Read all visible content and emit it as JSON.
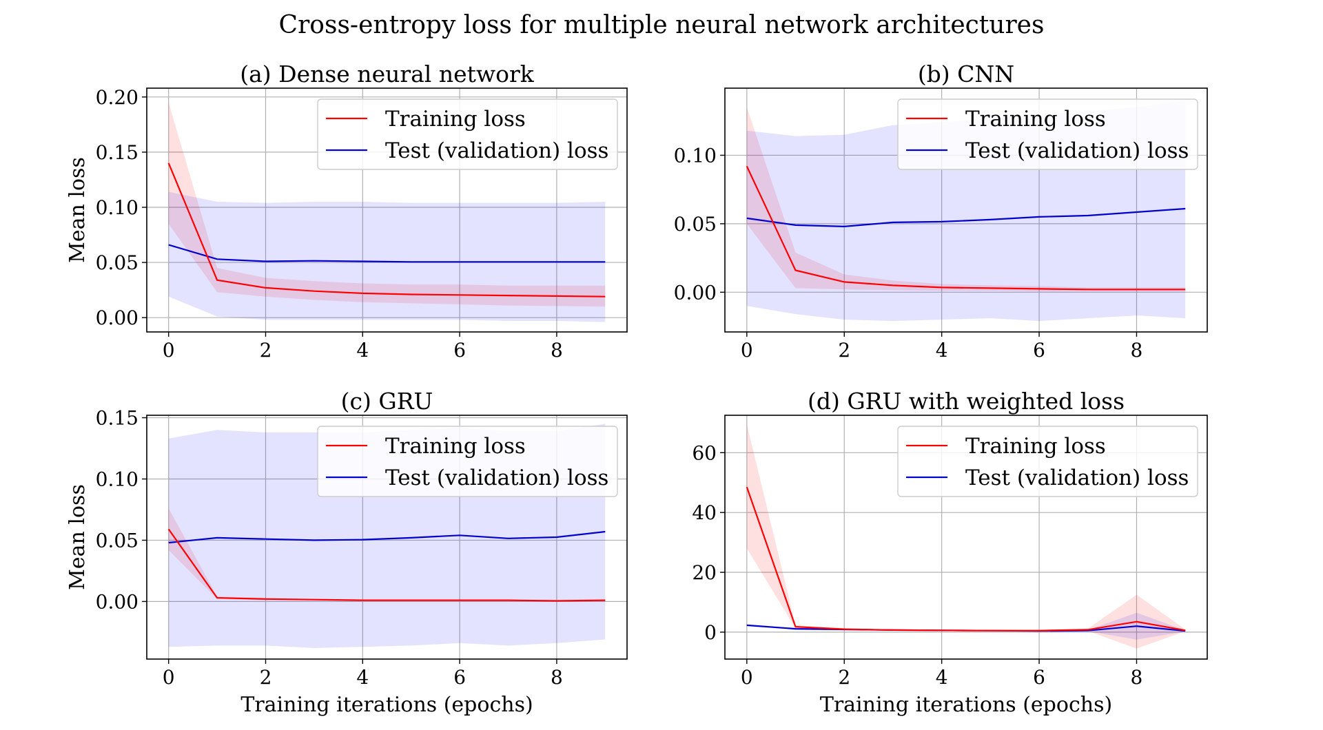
{
  "figure_title": "Cross-entropy loss for multiple neural network architectures",
  "colors": {
    "training": "#ff0000",
    "test": "#0000cc",
    "training_band": "#ff0000",
    "test_band": "#0000ff"
  },
  "chart_data": [
    {
      "type": "line",
      "title": "(a) Dense neural network",
      "xlabel": "Training iterations (epochs)",
      "ylabel": "Mean loss",
      "show_xlabel": false,
      "show_ylabel": true,
      "xlim": [
        -0.45,
        9.45
      ],
      "ylim": [
        -0.013,
        0.208
      ],
      "xticks": [
        0,
        2,
        4,
        6,
        8
      ],
      "yticks": [
        0.0,
        0.05,
        0.1,
        0.15,
        0.2
      ],
      "ytick_labels": [
        "0.00",
        "0.05",
        "0.10",
        "0.15",
        "0.20"
      ],
      "grid": true,
      "legend_position": "top-right",
      "x": [
        0,
        1,
        2,
        3,
        4,
        5,
        6,
        7,
        8,
        9
      ],
      "series": [
        {
          "name": "Training loss",
          "values": [
            0.14,
            0.034,
            0.027,
            0.024,
            0.022,
            0.021,
            0.0205,
            0.02,
            0.0195,
            0.019
          ],
          "lower": [
            0.085,
            0.023,
            0.019,
            0.016,
            0.014,
            0.013,
            0.012,
            0.011,
            0.0105,
            0.01
          ],
          "upper": [
            0.195,
            0.045,
            0.036,
            0.033,
            0.031,
            0.03,
            0.03,
            0.029,
            0.029,
            0.029
          ]
        },
        {
          "name": "Test (validation) loss",
          "values": [
            0.066,
            0.053,
            0.051,
            0.0515,
            0.051,
            0.0505,
            0.0505,
            0.0505,
            0.0505,
            0.0505
          ],
          "lower": [
            0.019,
            0.001,
            -0.002,
            -0.002,
            -0.002,
            -0.002,
            -0.002,
            -0.003,
            -0.003,
            -0.004
          ],
          "upper": [
            0.114,
            0.105,
            0.104,
            0.105,
            0.105,
            0.104,
            0.104,
            0.104,
            0.104,
            0.105
          ]
        }
      ]
    },
    {
      "type": "line",
      "title": "(b) CNN",
      "xlabel": "Training iterations (epochs)",
      "ylabel": "Mean loss",
      "show_xlabel": false,
      "show_ylabel": false,
      "xlim": [
        -0.45,
        9.45
      ],
      "ylim": [
        -0.029,
        0.149
      ],
      "xticks": [
        0,
        2,
        4,
        6,
        8
      ],
      "yticks": [
        0.0,
        0.05,
        0.1
      ],
      "ytick_labels": [
        "0.00",
        "0.05",
        "0.10"
      ],
      "grid": true,
      "legend_position": "top-right",
      "x": [
        0,
        1,
        2,
        3,
        4,
        5,
        6,
        7,
        8,
        9
      ],
      "series": [
        {
          "name": "Training loss",
          "values": [
            0.092,
            0.016,
            0.0075,
            0.005,
            0.0035,
            0.003,
            0.0025,
            0.002,
            0.002,
            0.002
          ],
          "lower": [
            0.05,
            0.003,
            0.002,
            0.0015,
            0.001,
            0.001,
            0.0005,
            0.0005,
            0.0005,
            0.0005
          ],
          "upper": [
            0.135,
            0.029,
            0.013,
            0.0085,
            0.006,
            0.005,
            0.0045,
            0.0035,
            0.0035,
            0.0035
          ]
        },
        {
          "name": "Test (validation) loss",
          "values": [
            0.054,
            0.049,
            0.048,
            0.051,
            0.0515,
            0.053,
            0.055,
            0.056,
            0.0585,
            0.061
          ],
          "lower": [
            -0.01,
            -0.016,
            -0.02,
            -0.021,
            -0.02,
            -0.019,
            -0.021,
            -0.019,
            -0.017,
            -0.019
          ],
          "upper": [
            0.118,
            0.114,
            0.115,
            0.122,
            0.124,
            0.127,
            0.13,
            0.132,
            0.135,
            0.14
          ]
        }
      ]
    },
    {
      "type": "line",
      "title": "(c) GRU",
      "xlabel": "Training iterations (epochs)",
      "ylabel": "Mean loss",
      "show_xlabel": true,
      "show_ylabel": true,
      "xlim": [
        -0.45,
        9.45
      ],
      "ylim": [
        -0.047,
        0.152
      ],
      "xticks": [
        0,
        2,
        4,
        6,
        8
      ],
      "yticks": [
        0.0,
        0.05,
        0.1,
        0.15
      ],
      "ytick_labels": [
        "0.00",
        "0.05",
        "0.10",
        "0.15"
      ],
      "grid": true,
      "legend_position": "top-right",
      "x": [
        0,
        1,
        2,
        3,
        4,
        5,
        6,
        7,
        8,
        9
      ],
      "series": [
        {
          "name": "Training loss",
          "values": [
            0.059,
            0.003,
            0.002,
            0.0015,
            0.001,
            0.001,
            0.001,
            0.001,
            0.0005,
            0.001
          ],
          "lower": [
            0.042,
            0.002,
            0.001,
            0.001,
            0.0005,
            0.0005,
            0.0005,
            0.0005,
            0.0,
            0.0005
          ],
          "upper": [
            0.076,
            0.004,
            0.003,
            0.002,
            0.0015,
            0.0015,
            0.0015,
            0.0015,
            0.001,
            0.0015
          ]
        },
        {
          "name": "Test (validation) loss",
          "values": [
            0.048,
            0.052,
            0.051,
            0.05,
            0.0505,
            0.052,
            0.054,
            0.0515,
            0.0525,
            0.057
          ],
          "lower": [
            -0.037,
            -0.036,
            -0.036,
            -0.038,
            -0.037,
            -0.036,
            -0.034,
            -0.036,
            -0.034,
            -0.031
          ],
          "upper": [
            0.133,
            0.14,
            0.138,
            0.138,
            0.138,
            0.14,
            0.142,
            0.139,
            0.139,
            0.145
          ]
        }
      ]
    },
    {
      "type": "line",
      "title": "(d) GRU with weighted loss",
      "xlabel": "Training iterations (epochs)",
      "ylabel": "Mean loss",
      "show_xlabel": true,
      "show_ylabel": false,
      "xlim": [
        -0.45,
        9.45
      ],
      "ylim": [
        -9,
        72.5
      ],
      "xticks": [
        0,
        2,
        4,
        6,
        8
      ],
      "yticks": [
        0,
        20,
        40,
        60
      ],
      "ytick_labels": [
        "0",
        "20",
        "40",
        "60"
      ],
      "grid": true,
      "legend_position": "top-right",
      "x": [
        0,
        1,
        2,
        3,
        4,
        5,
        6,
        7,
        8,
        9
      ],
      "series": [
        {
          "name": "Training loss",
          "values": [
            48.5,
            1.8,
            1.0,
            0.7,
            0.6,
            0.5,
            0.5,
            0.8,
            3.5,
            0.6
          ],
          "lower": [
            28,
            1.3,
            0.7,
            0.5,
            0.4,
            0.3,
            0.3,
            0.4,
            -5.5,
            0.3
          ],
          "upper": [
            69.5,
            2.3,
            1.3,
            0.9,
            0.8,
            0.7,
            0.7,
            1.2,
            12.5,
            0.9
          ]
        },
        {
          "name": "Test (validation) loss",
          "values": [
            2.3,
            1.1,
            0.9,
            0.7,
            0.6,
            0.5,
            0.4,
            0.5,
            2.0,
            0.4
          ],
          "lower": [
            2.0,
            0.8,
            0.6,
            0.5,
            0.4,
            0.3,
            0.2,
            0.3,
            -2.5,
            0.2
          ],
          "upper": [
            2.6,
            1.4,
            1.2,
            0.9,
            0.8,
            0.7,
            0.6,
            0.7,
            6.5,
            0.6
          ]
        }
      ]
    }
  ]
}
